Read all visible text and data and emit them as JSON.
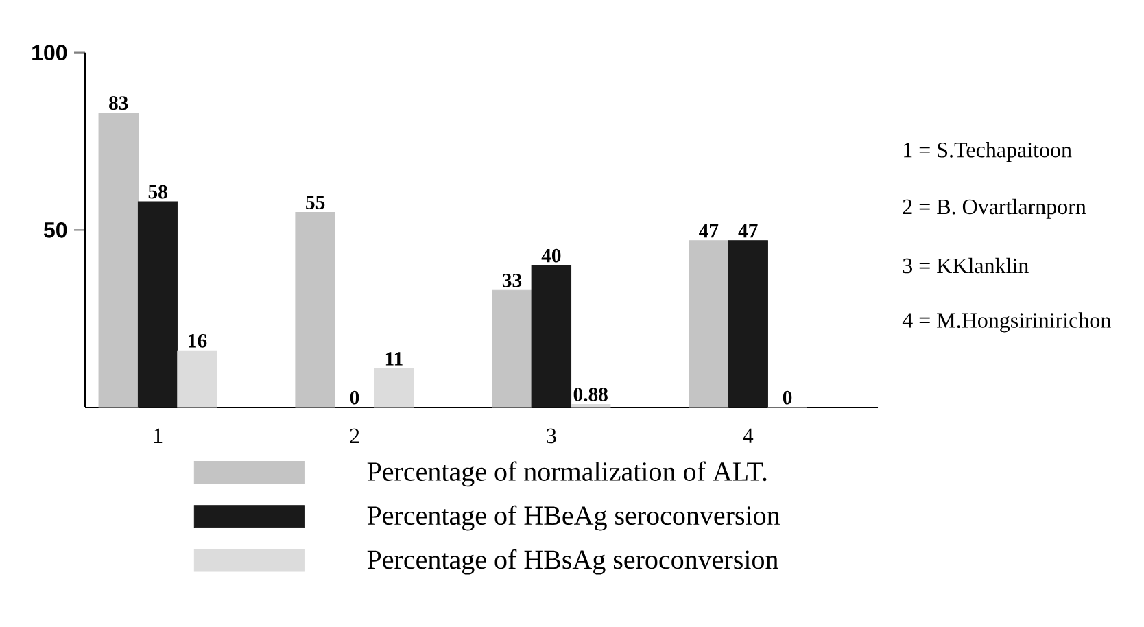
{
  "chart_data": {
    "type": "bar",
    "categories": [
      "1",
      "2",
      "3",
      "4"
    ],
    "series": [
      {
        "name": "Percentage of normalization of ALT.",
        "color": "#c4c4c4",
        "values": [
          83,
          55,
          33,
          47
        ]
      },
      {
        "name": "Percentage of HBeAg seroconversion",
        "color": "#1a1a1a",
        "values": [
          58,
          0,
          40,
          47
        ]
      },
      {
        "name": "Percentage of HBsAg seroconversion",
        "color": "#dcdcdc",
        "values": [
          16,
          11,
          0.88,
          0
        ]
      }
    ],
    "ylim": [
      0,
      100
    ],
    "yticks": [
      50,
      100
    ],
    "data_labels": true,
    "legend": "bottom",
    "grid": false,
    "annotations": [
      "1 =  S.Techapaitoon",
      "2 =  B. Ovartlarnporn",
      "3 =  KKlanklin",
      "4 = M.Hongsirinirichon"
    ]
  }
}
